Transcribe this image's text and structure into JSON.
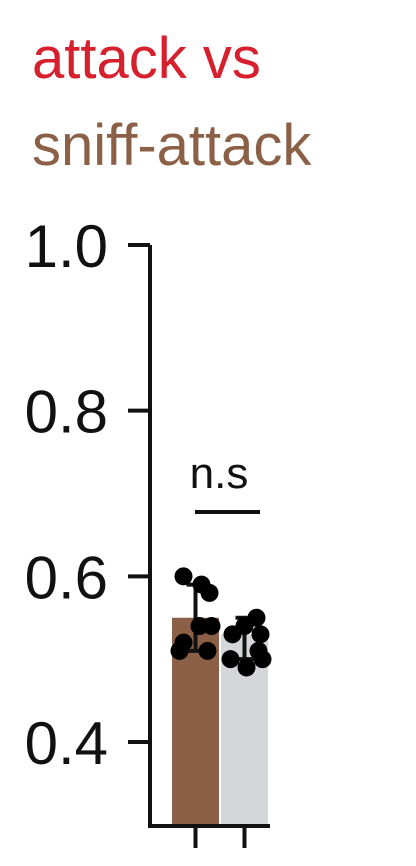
{
  "chart_data": {
    "type": "bar",
    "title_lines": [
      {
        "text": "attack vs",
        "color": "#d7202e"
      },
      {
        "text": "sniff-attack",
        "color": "#8b6046"
      }
    ],
    "categories": [
      "",
      ""
    ],
    "ylim": [
      0.4,
      1.0
    ],
    "yticks": [
      {
        "value": 1.0,
        "label": "1.0"
      },
      {
        "value": 0.8,
        "label": "0.8"
      },
      {
        "value": 0.6,
        "label": "0.6"
      },
      {
        "value": 0.4,
        "label": "0.4"
      }
    ],
    "bars": [
      {
        "name": "",
        "mean": 0.55,
        "err_low": 0.51,
        "err_high": 0.59,
        "color": "#8b6046",
        "points": [
          0.6,
          0.59,
          0.58,
          0.54,
          0.54,
          0.52,
          0.51,
          0.51
        ]
      },
      {
        "name": "",
        "mean": 0.53,
        "err_low": 0.5,
        "err_high": 0.55,
        "color": "#d4d6d7",
        "points": [
          0.55,
          0.54,
          0.53,
          0.53,
          0.51,
          0.5,
          0.5,
          0.49
        ]
      }
    ],
    "significance": {
      "label": "n.s",
      "between": [
        0,
        1
      ]
    },
    "grid": false,
    "legend": "none"
  }
}
